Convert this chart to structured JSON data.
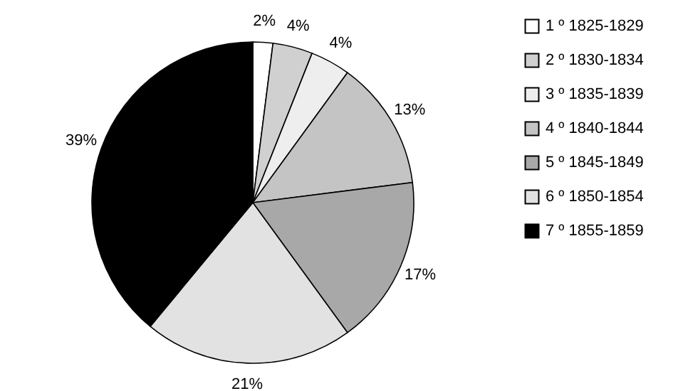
{
  "chart_data": {
    "type": "pie",
    "categories": [
      "1 º 1825-1829",
      "2 º 1830-1834",
      "3 º 1835-1839",
      "4 º 1840-1844",
      "5 º 1845-1849",
      "6 º 1850-1854",
      "7 º 1855-1859"
    ],
    "values": [
      2,
      4,
      4,
      13,
      17,
      21,
      39
    ],
    "colors": [
      "#ffffff",
      "#d0d0d0",
      "#eeeeee",
      "#c4c4c4",
      "#a8a8a8",
      "#e2e2e2",
      "#000000"
    ],
    "value_labels": [
      "2%",
      "4%",
      "4%",
      "13%",
      "17%",
      "21%",
      "39%"
    ],
    "legend": "right"
  }
}
